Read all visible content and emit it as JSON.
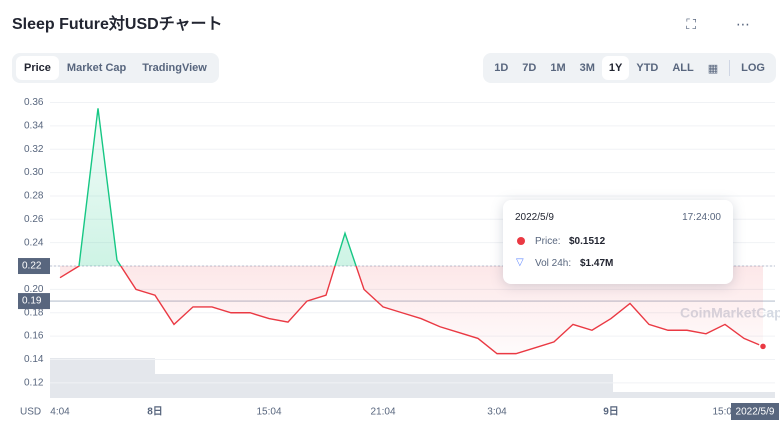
{
  "header": {
    "title": "Sleep Future対USDチャート"
  },
  "tabs": [
    "Price",
    "Market Cap",
    "TradingView"
  ],
  "ranges": [
    "1D",
    "7D",
    "1M",
    "3M",
    "1Y",
    "YTD",
    "ALL",
    "LOG"
  ],
  "tooltip": {
    "date": "2022/5/9",
    "time": "17:24:00",
    "price_label": "Price:",
    "price": "$0.1512",
    "volume_label": "Vol 24h:",
    "volume": "$1.47M"
  },
  "chart_data": {
    "type": "line",
    "currency": "USD",
    "watermark": "CoinMarketCap",
    "end_date": "2022/5/9",
    "categories": [
      "4:04",
      null,
      null,
      null,
      null,
      "8日",
      null,
      null,
      null,
      null,
      null,
      "15:04",
      null,
      null,
      null,
      null,
      null,
      "21:04",
      null,
      null,
      null,
      null,
      null,
      "3:04",
      null,
      null,
      null,
      null,
      null,
      "9日",
      null,
      null,
      null,
      null,
      null,
      "15:04",
      null,
      null
    ],
    "series": [
      {
        "name": "Price",
        "up_color": "#16c784",
        "down_color": "#ea3943",
        "values": [
          0.21,
          0.22,
          0.355,
          0.225,
          0.2,
          0.195,
          0.17,
          0.185,
          0.185,
          0.18,
          0.18,
          0.175,
          0.172,
          0.19,
          0.195,
          0.248,
          0.2,
          0.185,
          0.18,
          0.175,
          0.168,
          0.163,
          0.158,
          0.145,
          0.145,
          0.15,
          0.155,
          0.17,
          0.165,
          0.175,
          0.188,
          0.17,
          0.165,
          0.165,
          0.162,
          0.17,
          0.158,
          0.1512
        ]
      }
    ],
    "markers": [
      0.22,
      0.19
    ],
    "ylim": [
      0.107,
      0.369
    ],
    "yticks": [
      0.12,
      0.14,
      0.16,
      0.18,
      {
        "value": 0.2,
        "label": "0.20"
      },
      0.22,
      0.24,
      0.26,
      0.28,
      {
        "value": 0.3,
        "label": "0.30"
      },
      0.32,
      0.34,
      0.36
    ]
  }
}
